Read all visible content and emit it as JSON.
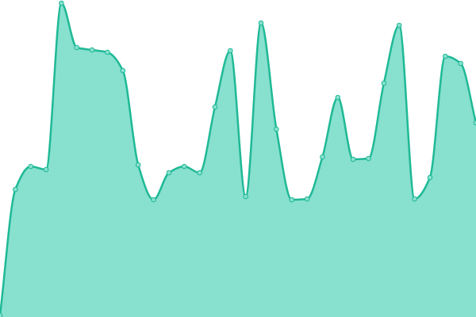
{
  "chart_data": {
    "type": "area",
    "categories": [
      null,
      null,
      null,
      null,
      null,
      null,
      null,
      null,
      null,
      null,
      null,
      null,
      null,
      null,
      null,
      null,
      null,
      null,
      null,
      null,
      null,
      null,
      null,
      null,
      null,
      null,
      null,
      null,
      null,
      null,
      null,
      null
    ],
    "values": [
      2,
      161,
      190,
      186,
      396,
      340,
      337,
      334,
      311,
      192,
      148,
      182,
      190,
      182,
      265,
      336,
      152,
      371,
      237,
      148,
      149,
      202,
      277,
      199,
      200,
      295,
      368,
      149,
      176,
      329,
      320,
      245
    ],
    "ylim": [
      0,
      400
    ],
    "color": "#88e0cf",
    "line_color": "#1fb996",
    "markers": true
  }
}
